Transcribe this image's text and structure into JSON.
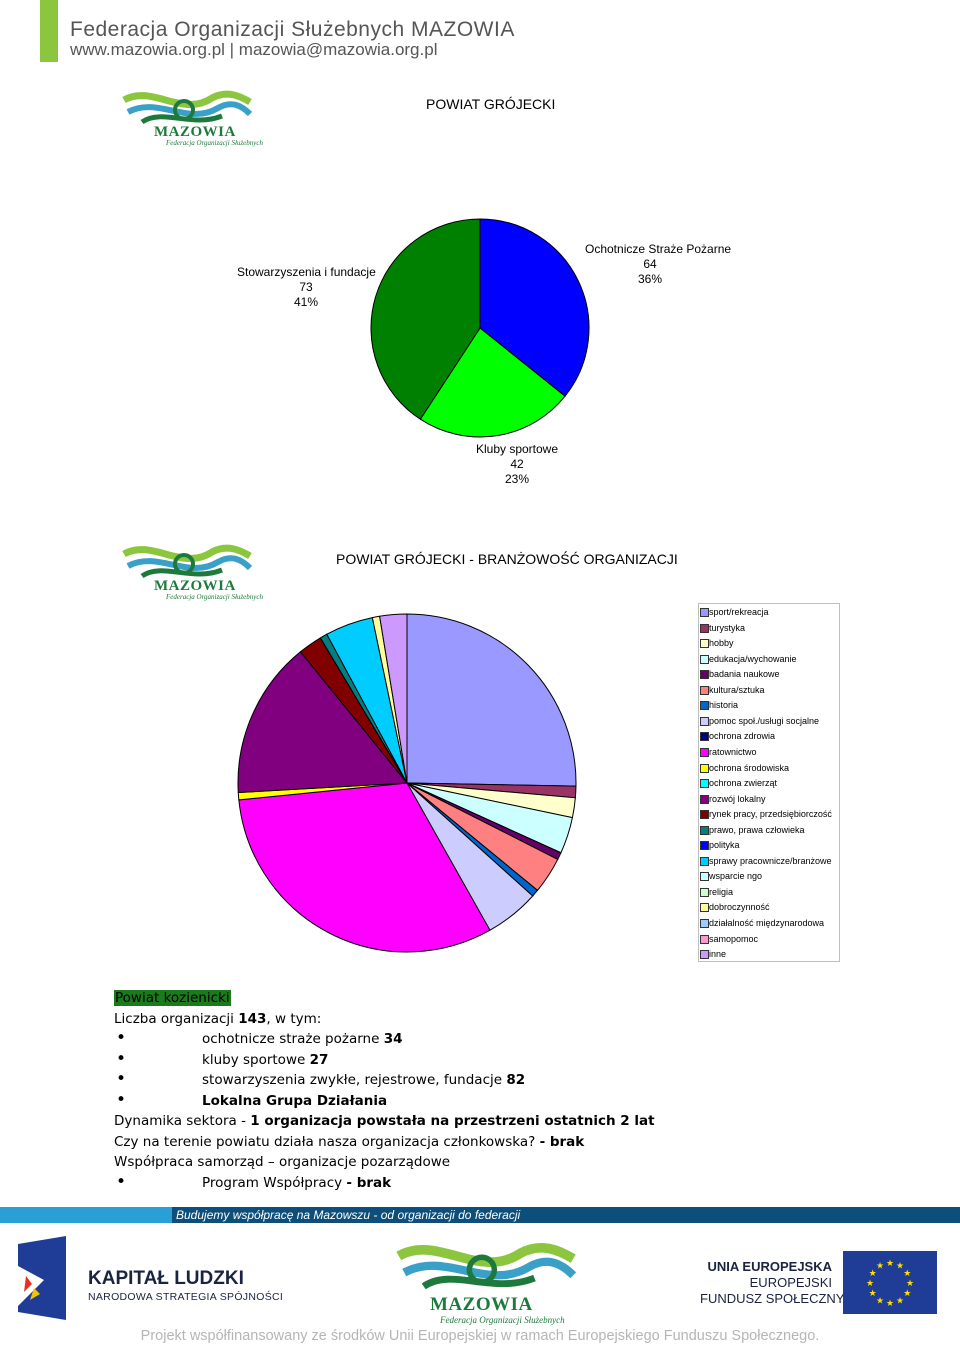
{
  "header": {
    "title": "Federacja Organizacji Służebnych MAZOWIA",
    "web": "www.mazowia.org.pl | mazowia@mazowia.org.pl",
    "accent": "#8cc63f"
  },
  "logo": {
    "text": "MAZOWIA",
    "sub": "Federacja Organizacji Służebnych"
  },
  "chart1_title": "POWIAT GRÓJECKI",
  "chart2_title": "POWIAT GRÓJECKI - BRANŻOWOŚĆ ORGANIZACJI",
  "chart_data": [
    {
      "type": "pie",
      "title": "POWIAT GRÓJECKI",
      "slices": [
        {
          "name": "Ochotnicze Straże Pożarne",
          "value": 64,
          "percent": "36%",
          "color": "#0000ff"
        },
        {
          "name": "Kluby sportowe",
          "value": 42,
          "percent": "23%",
          "color": "#00ff00"
        },
        {
          "name": "Stowarzyszenia i fundacje",
          "value": 73,
          "percent": "41%",
          "color": "#008000"
        }
      ]
    },
    {
      "type": "pie",
      "title": "POWIAT GRÓJECKI - BRANŻOWOŚĆ ORGANIZACJI",
      "legend_position": "right",
      "slices": [
        {
          "name": "sport/rekreacja",
          "value": 25.4,
          "color": "#9999ff"
        },
        {
          "name": "turystyka",
          "value": 1.1,
          "color": "#993366"
        },
        {
          "name": "hobby",
          "value": 1.9,
          "color": "#ffffcc"
        },
        {
          "name": "edukacja/wychowanie",
          "value": 3.5,
          "color": "#ccffff"
        },
        {
          "name": "badania naukowe",
          "value": 0.7,
          "color": "#660066"
        },
        {
          "name": "kultura/sztuka",
          "value": 3.5,
          "color": "#ff8080"
        },
        {
          "name": "historia",
          "value": 0.7,
          "color": "#0066cc"
        },
        {
          "name": "pomoc społ./usługi socjalne",
          "value": 5.2,
          "color": "#ccccff"
        },
        {
          "name": "ochrona zdrowia",
          "value": 0,
          "color": "#000080"
        },
        {
          "name": "ratownictwo",
          "value": 31.7,
          "color": "#ff00ff"
        },
        {
          "name": "ochrona środowiska",
          "value": 0.7,
          "color": "#ffff00"
        },
        {
          "name": "ochrona zwierząt",
          "value": 0,
          "color": "#00ffff"
        },
        {
          "name": "rozwój lokalny",
          "value": 15.1,
          "color": "#800080"
        },
        {
          "name": "rynek pracy, przedsiębiorczość",
          "value": 2.3,
          "color": "#800000"
        },
        {
          "name": "prawo, prawa człowieka",
          "value": 0.7,
          "color": "#008080"
        },
        {
          "name": "polityka",
          "value": 0,
          "color": "#0000ff"
        },
        {
          "name": "sprawy pracownicze/branżowe",
          "value": 4.6,
          "color": "#00ccff"
        },
        {
          "name": "wsparcie ngo",
          "value": 0,
          "color": "#ccffff"
        },
        {
          "name": "religia",
          "value": 0,
          "color": "#ccffcc"
        },
        {
          "name": "dobroczynność",
          "value": 0.7,
          "color": "#ffff99"
        },
        {
          "name": "działalność międzynarodowa",
          "value": 0,
          "color": "#99ccff"
        },
        {
          "name": "samopomoc",
          "value": 0,
          "color": "#ff99cc"
        },
        {
          "name": "inne",
          "value": 2.6,
          "color": "#cc99ff"
        }
      ]
    }
  ],
  "info": {
    "county": "Powiat kozienicki",
    "count_label": "Liczba organizacji ",
    "count_value": "143",
    "count_suffix": ", w tym:",
    "b1_label": "ochotnicze straże pożarne ",
    "b1_value": "34",
    "b2_label": "kluby sportowe ",
    "b2_value": "27",
    "b3_label": "stowarzyszenia zwykłe, rejestrowe, fundacje ",
    "b3_value": "82",
    "b4": "Lokalna Grupa Działania",
    "dyn_label": "Dynamika sektora - ",
    "dyn_value": "1 organizacja powstała na przestrzeni ostatnich 2 lat",
    "q_label": "Czy na terenie powiatu działa nasza organizacja członkowska? ",
    "q_value": "- brak",
    "coop": "Współpraca samorząd – organizacje pozarządowe",
    "prog_label": "Program Współpracy ",
    "prog_value": "- brak"
  },
  "footer": {
    "slogan": "Budujemy współpracę na Mazowszu - od organizacji do federacji",
    "kl_title": "KAPITAŁ LUDZKI",
    "kl_sub": "NARODOWA STRATEGIA SPÓJNOŚCI",
    "ue1": "UNIA EUROPEJSKA",
    "ue2": "EUROPEJSKI",
    "ue3": "FUNDUSZ SPOŁECZNY",
    "project": "Projekt współfinansowany ze środków Unii Europejskiej w ramach Europejskiego Funduszu Społecznego."
  }
}
